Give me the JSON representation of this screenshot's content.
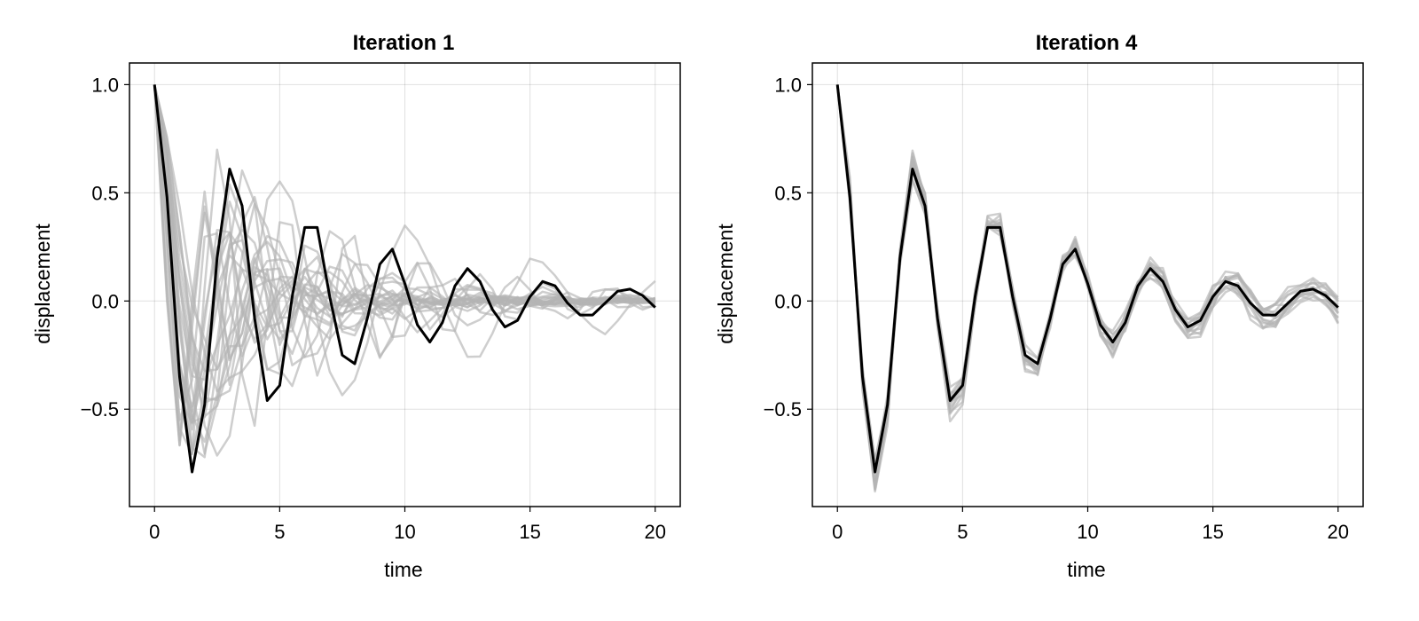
{
  "chart_data": [
    {
      "type": "line",
      "title": "Iteration 1",
      "xlabel": "time",
      "ylabel": "displacement",
      "xlim": [
        -1,
        21
      ],
      "ylim": [
        -0.95,
        1.1
      ],
      "xticks": [
        0,
        5,
        10,
        15,
        20
      ],
      "xtick_labels": [
        "0",
        "5",
        "10",
        "15",
        "20"
      ],
      "yticks": [
        -0.5,
        0.0,
        0.5,
        1.0
      ],
      "ytick_labels": [
        "−0.5",
        "0.0",
        "0.5",
        "1.0"
      ],
      "grid": true,
      "legend": "none",
      "colors": {
        "main": "#000000",
        "ensemble": "#b3b3b3"
      },
      "main_series": {
        "x": [
          0,
          0.5,
          1,
          1.5,
          2,
          2.5,
          3,
          3.5,
          4,
          4.5,
          5,
          5.5,
          6,
          6.5,
          7,
          7.5,
          8,
          8.5,
          9,
          9.5,
          10,
          10.5,
          11,
          11.5,
          12,
          12.5,
          13,
          13.5,
          14,
          14.5,
          15,
          15.5,
          16,
          16.5,
          17,
          17.5,
          18,
          18.5,
          19,
          19.5,
          20
        ],
        "y": [
          1.0,
          0.48,
          -0.35,
          -0.79,
          -0.48,
          0.2,
          0.61,
          0.44,
          -0.08,
          -0.46,
          -0.39,
          0.02,
          0.34,
          0.34,
          0.02,
          -0.25,
          -0.29,
          -0.08,
          0.17,
          0.24,
          0.08,
          -0.11,
          -0.19,
          -0.1,
          0.07,
          0.15,
          0.09,
          -0.04,
          -0.12,
          -0.09,
          0.02,
          0.09,
          0.07,
          -0.01,
          -0.065,
          -0.065,
          -0.01,
          0.045,
          0.055,
          0.025,
          -0.03
        ]
      },
      "ensemble": {
        "count": 24,
        "x_start": 0,
        "x_end": 20,
        "x_step": 0.5,
        "y0": 1.0,
        "freq_range": [
          1.0,
          3.2
        ],
        "decay_range": [
          0.1,
          0.48
        ],
        "phase_range": [
          -0.12,
          0.12
        ],
        "jitter": 0.07,
        "seed": 11
      }
    },
    {
      "type": "line",
      "title": "Iteration 4",
      "xlabel": "time",
      "ylabel": "displacement",
      "xlim": [
        -1,
        21
      ],
      "ylim": [
        -0.95,
        1.1
      ],
      "xticks": [
        0,
        5,
        10,
        15,
        20
      ],
      "xtick_labels": [
        "0",
        "5",
        "10",
        "15",
        "20"
      ],
      "yticks": [
        -0.5,
        0.0,
        0.5,
        1.0
      ],
      "ytick_labels": [
        "−0.5",
        "0.0",
        "0.5",
        "1.0"
      ],
      "grid": true,
      "legend": "none",
      "colors": {
        "main": "#000000",
        "ensemble": "#b3b3b3"
      },
      "main_series": {
        "x": [
          0,
          0.5,
          1,
          1.5,
          2,
          2.5,
          3,
          3.5,
          4,
          4.5,
          5,
          5.5,
          6,
          6.5,
          7,
          7.5,
          8,
          8.5,
          9,
          9.5,
          10,
          10.5,
          11,
          11.5,
          12,
          12.5,
          13,
          13.5,
          14,
          14.5,
          15,
          15.5,
          16,
          16.5,
          17,
          17.5,
          18,
          18.5,
          19,
          19.5,
          20
        ],
        "y": [
          1.0,
          0.48,
          -0.35,
          -0.79,
          -0.48,
          0.2,
          0.61,
          0.44,
          -0.08,
          -0.46,
          -0.39,
          0.02,
          0.34,
          0.34,
          0.02,
          -0.25,
          -0.29,
          -0.08,
          0.17,
          0.24,
          0.08,
          -0.11,
          -0.19,
          -0.1,
          0.07,
          0.15,
          0.09,
          -0.04,
          -0.12,
          -0.09,
          0.02,
          0.09,
          0.07,
          -0.01,
          -0.065,
          -0.065,
          -0.01,
          0.045,
          0.055,
          0.025,
          -0.03
        ]
      },
      "ensemble": {
        "count": 14,
        "x_start": 0,
        "x_end": 20,
        "x_step": 0.5,
        "y0": 1.0,
        "amp_scale_range": [
          0.9,
          1.15
        ],
        "drift_range": [
          -0.06,
          0.06
        ],
        "jitter": 0.035,
        "seed": 7
      }
    }
  ]
}
